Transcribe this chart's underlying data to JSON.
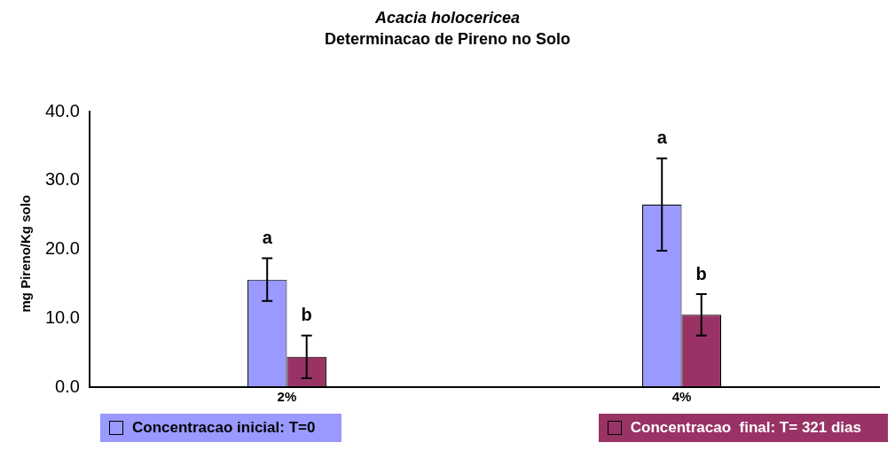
{
  "chart_data": {
    "type": "bar",
    "title": "Acacia holocericea",
    "subtitle": "Determinacao de Pireno no Solo",
    "ylabel": "mg Pireno/Kg solo",
    "categories": [
      "2%",
      "4%"
    ],
    "series": [
      {
        "name": "Concentracao inicial: T=0",
        "color": "#9999ff",
        "values": [
          15.6,
          26.5
        ],
        "errors": [
          3.1,
          6.7
        ]
      },
      {
        "name": "Concentracao  final: T= 321 dias",
        "color": "#993366",
        "values": [
          4.4,
          10.5
        ],
        "errors": [
          3.1,
          3.0
        ]
      }
    ],
    "ylim": [
      0,
      40
    ],
    "yticks": [
      {
        "value": 0,
        "label": "0.0"
      },
      {
        "value": 10,
        "label": "10.0"
      },
      {
        "value": 20,
        "label": "20.0"
      },
      {
        "value": 30,
        "label": "30.0"
      },
      {
        "value": 40,
        "label": "40.0"
      }
    ],
    "grid": false,
    "legend": "bottom",
    "annotations": [
      "a",
      "b",
      "a",
      "b"
    ]
  }
}
